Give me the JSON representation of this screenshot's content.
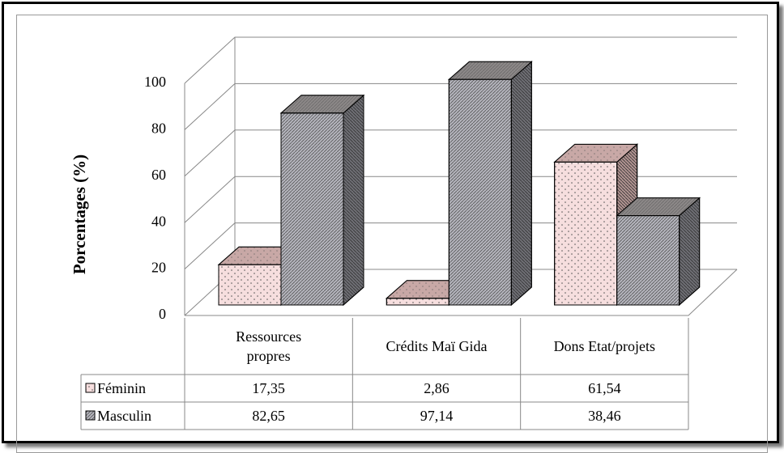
{
  "chart_data": {
    "type": "bar3d",
    "ylabel": "Porcentages (%)",
    "categories": [
      "Ressources propres",
      "Crédits Maï Gida",
      "Dons Etat/projets"
    ],
    "series": [
      {
        "name": "Féminin",
        "color": "#f6dede",
        "top_color": "#c8a8a6",
        "side_color": "#b09290",
        "values": [
          17.35,
          2.86,
          61.54
        ],
        "value_labels": [
          "17,35",
          "2,86",
          "61,54"
        ]
      },
      {
        "name": "Masculin",
        "color": "#b4b4bc",
        "top_color": "#8c8888",
        "side_color": "#6e6e74",
        "values": [
          82.65,
          97.14,
          38.46
        ],
        "value_labels": [
          "82,65",
          "97,14",
          "38,46"
        ]
      }
    ],
    "ylim": [
      0,
      100
    ],
    "yticks": [
      0,
      20,
      40,
      60,
      80,
      100
    ],
    "grid": true
  }
}
